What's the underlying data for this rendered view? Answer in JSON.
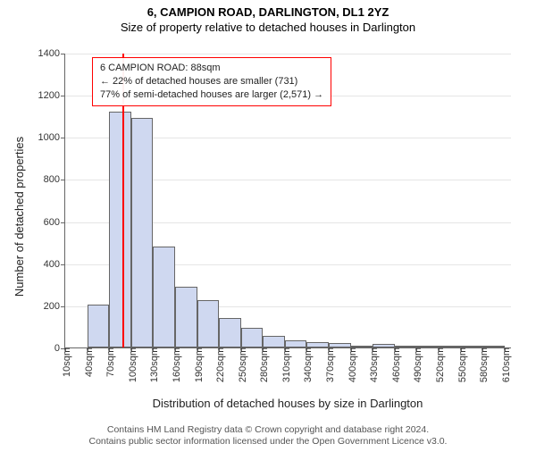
{
  "title": "6, CAMPION ROAD, DARLINGTON, DL1 2YZ",
  "subtitle": "Size of property relative to detached houses in Darlington",
  "chart": {
    "type": "histogram",
    "ylabel": "Number of detached properties",
    "xlabel": "Distribution of detached houses by size in Darlington",
    "ylim": [
      0,
      1400
    ],
    "ytick_step": 200,
    "xlim": [
      10,
      620
    ],
    "bin_width": 30,
    "bar_fill": "#cfd8f0",
    "bar_stroke": "#666666",
    "grid_color": "#e5e5e5",
    "tick_fontsize": 11,
    "label_fontsize": 13,
    "x_ticks": [
      10,
      40,
      70,
      100,
      130,
      160,
      190,
      220,
      250,
      280,
      310,
      340,
      370,
      400,
      430,
      460,
      490,
      520,
      550,
      580,
      610
    ],
    "x_tick_unit": "sqm",
    "bins": [
      {
        "lo": 10,
        "count": 0
      },
      {
        "lo": 40,
        "count": 205
      },
      {
        "lo": 70,
        "count": 1120
      },
      {
        "lo": 100,
        "count": 1090
      },
      {
        "lo": 130,
        "count": 480
      },
      {
        "lo": 160,
        "count": 290
      },
      {
        "lo": 190,
        "count": 225
      },
      {
        "lo": 220,
        "count": 140
      },
      {
        "lo": 250,
        "count": 95
      },
      {
        "lo": 280,
        "count": 55
      },
      {
        "lo": 310,
        "count": 35
      },
      {
        "lo": 340,
        "count": 25
      },
      {
        "lo": 370,
        "count": 20
      },
      {
        "lo": 400,
        "count": 5
      },
      {
        "lo": 430,
        "count": 15
      },
      {
        "lo": 460,
        "count": 3
      },
      {
        "lo": 490,
        "count": 2
      },
      {
        "lo": 520,
        "count": 2
      },
      {
        "lo": 550,
        "count": 2
      },
      {
        "lo": 580,
        "count": 1
      }
    ],
    "marker": {
      "value": 88,
      "color": "#ff0000"
    },
    "callout": {
      "border_color": "#ff0000",
      "lines": [
        "6 CAMPION ROAD: 88sqm",
        "← 22% of detached houses are smaller (731)",
        "77% of semi-detached houses are larger (2,571) →"
      ]
    }
  },
  "footer": {
    "line1": "Contains HM Land Registry data © Crown copyright and database right 2024.",
    "line2": "Contains public sector information licensed under the Open Government Licence v3.0."
  }
}
